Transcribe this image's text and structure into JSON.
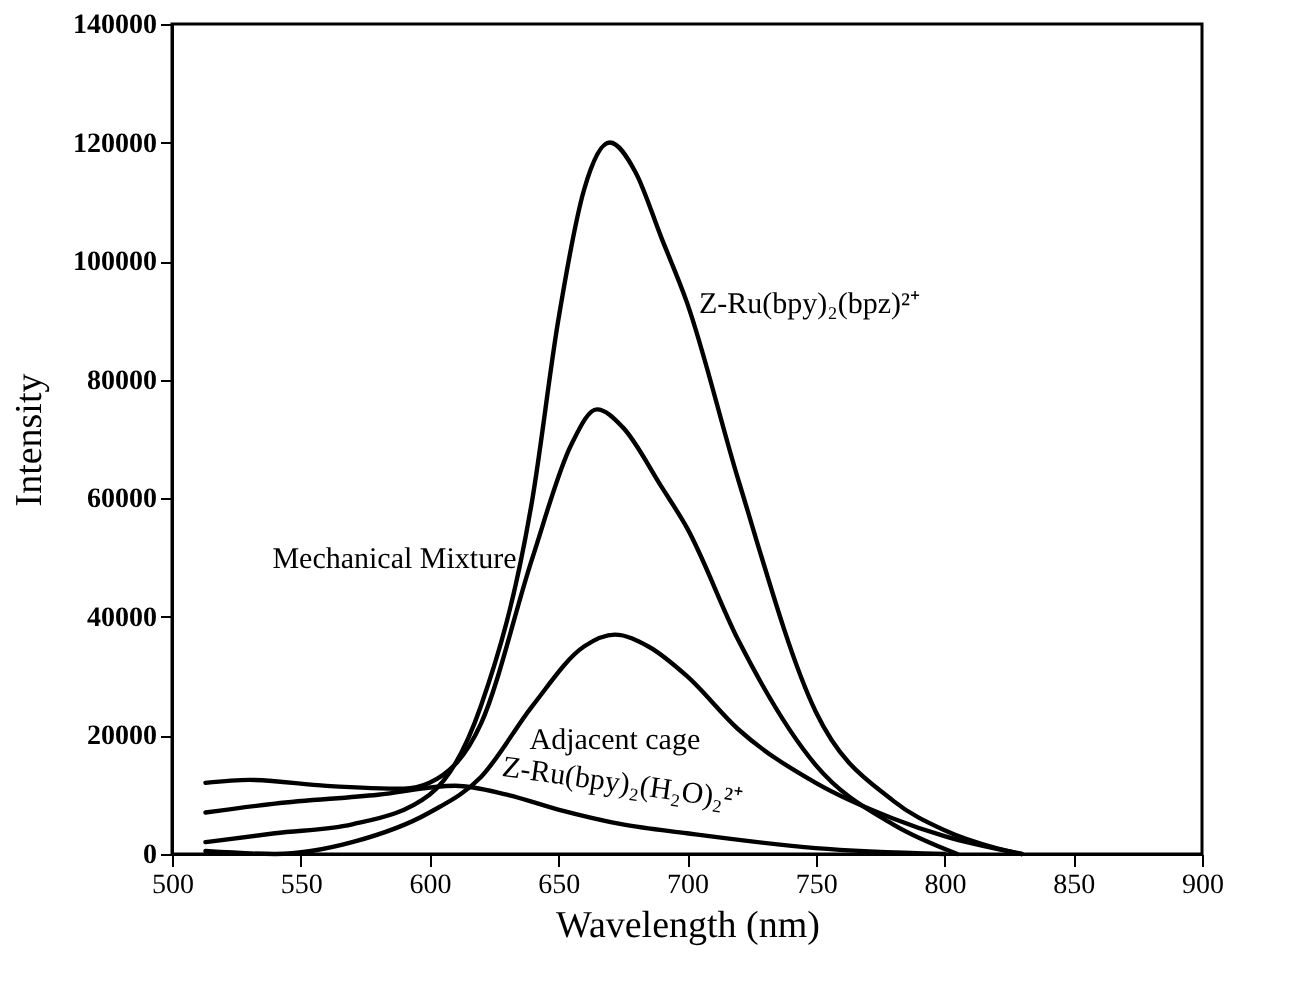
{
  "chart_data": {
    "type": "line",
    "xlabel": "Wavelength (nm)",
    "ylabel": "Intensity",
    "xlim": [
      500,
      900
    ],
    "xticks": [
      500,
      550,
      600,
      650,
      700,
      750,
      800,
      850,
      900
    ],
    "ylim": [
      0,
      140000
    ],
    "yticks": [
      0,
      20000,
      40000,
      60000,
      80000,
      100000,
      120000,
      140000
    ],
    "grid": false,
    "legend": false,
    "marker": "none",
    "line_style": "solid",
    "series": [
      {
        "name": "Z-Ru(bpy)₂(bpz)²⁺",
        "color": "#000000",
        "x": [
          513,
          540,
          570,
          600,
          620,
          640,
          650,
          660,
          670,
          680,
          690,
          700,
          720,
          750,
          780,
          800,
          820,
          830
        ],
        "values": [
          2000,
          3500,
          5000,
          10000,
          25000,
          60000,
          90000,
          112000,
          120000,
          115000,
          104000,
          93000,
          63000,
          24000,
          9000,
          4000,
          1000,
          0
        ]
      },
      {
        "name": "Mechanical Mixture",
        "color": "#000000",
        "x": [
          513,
          530,
          560,
          590,
          600,
          620,
          640,
          655,
          665,
          675,
          690,
          700,
          720,
          750,
          780,
          805
        ],
        "values": [
          12000,
          12500,
          11500,
          11000,
          12000,
          22000,
          50000,
          69000,
          75000,
          72000,
          62000,
          55000,
          36000,
          15000,
          5000,
          0
        ]
      },
      {
        "name": "Adjacent cage",
        "color": "#000000",
        "x": [
          513,
          540,
          570,
          600,
          620,
          640,
          660,
          672,
          685,
          700,
          720,
          750,
          780,
          800,
          830
        ],
        "values": [
          500,
          0,
          2000,
          7000,
          13000,
          25000,
          35000,
          37000,
          35000,
          30000,
          21000,
          12000,
          6000,
          3000,
          0
        ]
      },
      {
        "name": "Z-Ru(bpy)₂(H₂O)₂²⁺",
        "color": "#000000",
        "x": [
          513,
          540,
          580,
          610,
          630,
          650,
          675,
          700,
          750,
          800
        ],
        "values": [
          7000,
          8500,
          10000,
          11500,
          10000,
          7500,
          5000,
          3500,
          1000,
          0
        ]
      }
    ]
  }
}
